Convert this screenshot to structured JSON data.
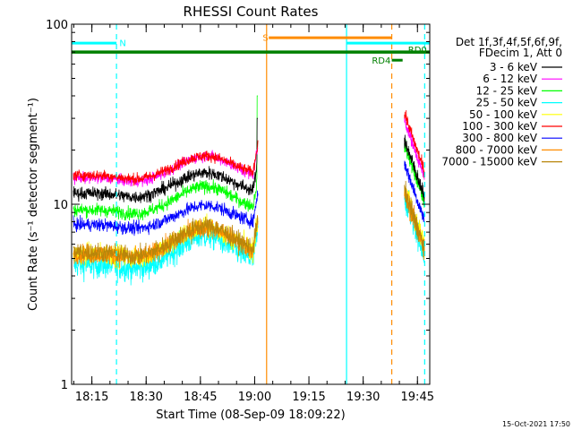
{
  "chart_data": {
    "type": "line",
    "title": "RHESSI Count Rates",
    "xlabel": "Start Time (08-Sep-09 18:09:22)",
    "ylabel": "Count Rate (s⁻¹ detector segment⁻¹)",
    "y_scale": "log",
    "ylim": [
      1,
      100
    ],
    "y_ticks": [
      {
        "value": 1,
        "label": "1"
      },
      {
        "value": 10,
        "label": "10"
      },
      {
        "value": 100,
        "label": "100"
      }
    ],
    "x_range_minutes": [
      0,
      99
    ],
    "x_ticks": [
      {
        "minute": 5.6,
        "label": "18:15"
      },
      {
        "minute": 20.6,
        "label": "18:30"
      },
      {
        "minute": 35.6,
        "label": "18:45"
      },
      {
        "minute": 50.6,
        "label": "19:00"
      },
      {
        "minute": 65.6,
        "label": "19:15"
      },
      {
        "minute": 80.6,
        "label": "19:30"
      },
      {
        "minute": 95.6,
        "label": "19:45"
      }
    ],
    "legend_header": [
      "Det 1f,3f,4f,5f,6f,9f,",
      "FDecim 1, Att 0"
    ],
    "legend_position": "right",
    "series": [
      {
        "name": "3 - 6 keV",
        "color": "#000000",
        "base": 11.5,
        "bump": 1.3,
        "noise": 0.06,
        "jump": 1.9
      },
      {
        "name": "6 - 12 keV",
        "color": "#ff00ff",
        "base": 14.0,
        "bump": 1.32,
        "noise": 0.05,
        "jump": 2.0
      },
      {
        "name": "12 - 25 keV",
        "color": "#00ff00",
        "base": 9.3,
        "bump": 1.35,
        "noise": 0.06,
        "jump": 2.2
      },
      {
        "name": "25 - 50 keV",
        "color": "#00ffff",
        "base": 4.6,
        "bump": 1.45,
        "noise": 0.12,
        "jump": 2.3
      },
      {
        "name": "50 - 100 keV",
        "color": "#ffff00",
        "base": 5.3,
        "bump": 1.4,
        "noise": 0.1,
        "jump": 2.2
      },
      {
        "name": "100 - 300 keV",
        "color": "#ff0000",
        "base": 14.5,
        "bump": 1.28,
        "noise": 0.05,
        "jump": 2.1
      },
      {
        "name": "300 - 800 keV",
        "color": "#0000ff",
        "base": 7.7,
        "bump": 1.28,
        "noise": 0.06,
        "jump": 2.1
      },
      {
        "name": "800 - 7000 keV",
        "color": "#ff8c00",
        "base": 5.3,
        "bump": 1.4,
        "noise": 0.09,
        "jump": 2.1
      },
      {
        "name": "7000 - 15000 keV",
        "color": "#b8860b",
        "base": 5.4,
        "bump": 1.4,
        "noise": 0.09,
        "jump": 2.1
      }
    ],
    "segments_minutes": [
      [
        0.5,
        51.5
      ],
      [
        92,
        97.5
      ]
    ],
    "spike_minute": 51.4,
    "spike_value": 40,
    "flag_bars": [
      {
        "label": "N",
        "color": "#00ffff",
        "start": 0,
        "end": 12.4,
        "y_frac": 0.105,
        "label_minute": 13.2
      },
      {
        "label": "S",
        "color": "#ff8c00",
        "start": 54.5,
        "end": 88.5,
        "y_frac": 0.075,
        "label_minute": 52.8
      },
      {
        "label": "",
        "color": "#00ffff",
        "start": 76,
        "end": 99,
        "y_frac": 0.105
      },
      {
        "label": "",
        "color": "#008000",
        "start": 0,
        "end": 99,
        "y_frac": 0.155
      },
      {
        "label": "RD4",
        "color": "#008000",
        "start": 88.5,
        "end": 91.5,
        "y_frac": 0.2,
        "label_minute": 83
      },
      {
        "label": "RD0",
        "color": "#008000",
        "start": 92,
        "end": 97.3,
        "y_frac": 0.155,
        "label_minute": 93
      }
    ],
    "vlines": [
      {
        "minute": 12.4,
        "color": "#00ffff",
        "style": "dashed"
      },
      {
        "minute": 53.9,
        "color": "#ff8c00",
        "style": "solid"
      },
      {
        "minute": 76.0,
        "color": "#00ffff",
        "style": "solid"
      },
      {
        "minute": 88.5,
        "color": "#ff8c00",
        "style": "dashed"
      },
      {
        "minute": 97.6,
        "color": "#00ffff",
        "style": "dashed"
      }
    ]
  },
  "footer": {
    "timestamp": "15-Oct-2021 17:50"
  }
}
